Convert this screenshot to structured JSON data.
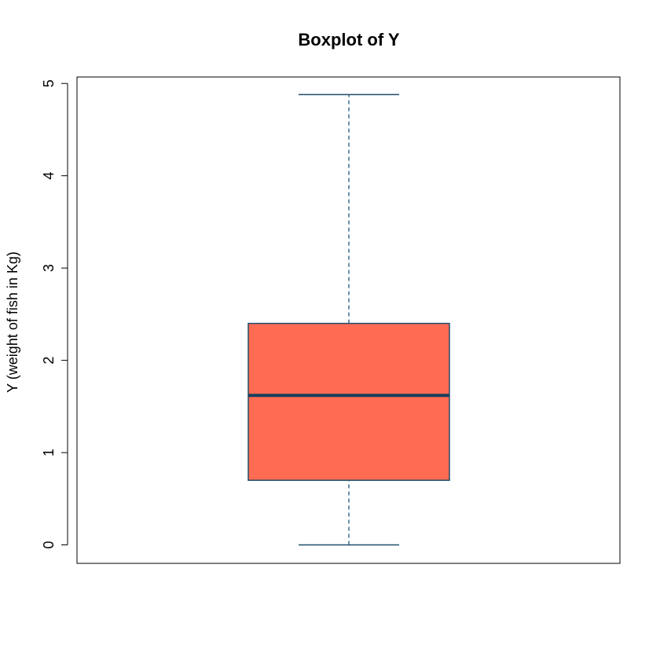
{
  "chart_data": {
    "type": "boxplot",
    "title": "Boxplot of Y",
    "xlabel": "",
    "ylabel": "Y (weight of fish in Kg)",
    "ylim": [
      -0.2,
      5.07
    ],
    "yticks": [
      0,
      1,
      2,
      3,
      4,
      5
    ],
    "ytick_labels": [
      "0",
      "1",
      "2",
      "3",
      "4",
      "5"
    ],
    "grid": false,
    "box": {
      "min": 0.0,
      "q1": 0.7,
      "median": 1.62,
      "q3": 2.4,
      "max": 4.88
    },
    "colors": {
      "box_fill": "#FF6B53",
      "box_border": "#1F4E6B",
      "median": "#173F5F",
      "whisker": "#3C6E8F",
      "axis": "#000000"
    }
  }
}
